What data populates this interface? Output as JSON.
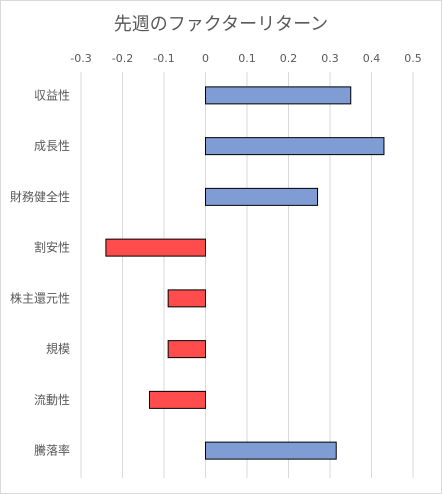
{
  "chart_data": {
    "type": "bar",
    "orientation": "horizontal",
    "title": "先週のファクターリターン",
    "categories": [
      "収益性",
      "成長性",
      "財務健全性",
      "割安性",
      "株主還元性",
      "規模",
      "流動性",
      "騰落率"
    ],
    "values": [
      0.35,
      0.43,
      0.27,
      -0.24,
      -0.09,
      -0.09,
      -0.135,
      0.315
    ],
    "xlim": [
      -0.3,
      0.5
    ],
    "xticks": [
      "-0.3",
      "-0.2",
      "-0.1",
      "0",
      "0.1",
      "0.2",
      "0.3",
      "0.4",
      "0.5"
    ],
    "x_axis_position": "top",
    "grid": true,
    "positive_color": "#7f9dd4",
    "negative_color": "#ff4d4d"
  }
}
